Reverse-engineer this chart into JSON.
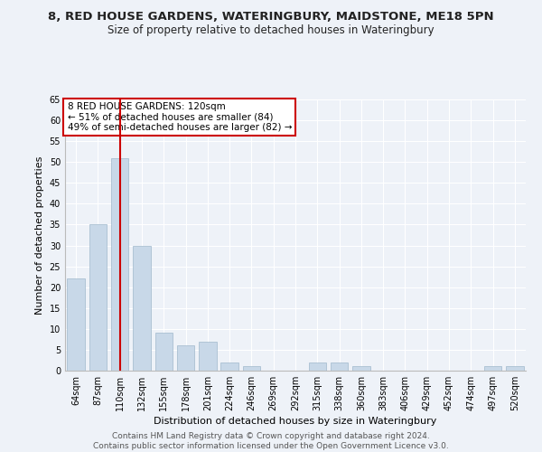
{
  "title": "8, RED HOUSE GARDENS, WATERINGBURY, MAIDSTONE, ME18 5PN",
  "subtitle": "Size of property relative to detached houses in Wateringbury",
  "xlabel": "Distribution of detached houses by size in Wateringbury",
  "ylabel": "Number of detached properties",
  "categories": [
    "64sqm",
    "87sqm",
    "110sqm",
    "132sqm",
    "155sqm",
    "178sqm",
    "201sqm",
    "224sqm",
    "246sqm",
    "269sqm",
    "292sqm",
    "315sqm",
    "338sqm",
    "360sqm",
    "383sqm",
    "406sqm",
    "429sqm",
    "452sqm",
    "474sqm",
    "497sqm",
    "520sqm"
  ],
  "values": [
    22,
    35,
    51,
    30,
    9,
    6,
    7,
    2,
    1,
    0,
    0,
    2,
    2,
    1,
    0,
    0,
    0,
    0,
    0,
    1,
    1
  ],
  "bar_color": "#c8d8e8",
  "bar_edge_color": "#a0b8cc",
  "vline_x_index": 2,
  "vline_color": "#cc0000",
  "annotation_text": "8 RED HOUSE GARDENS: 120sqm\n← 51% of detached houses are smaller (84)\n49% of semi-detached houses are larger (82) →",
  "annotation_box_color": "white",
  "annotation_box_edge_color": "#cc0000",
  "ylim": [
    0,
    65
  ],
  "yticks": [
    0,
    5,
    10,
    15,
    20,
    25,
    30,
    35,
    40,
    45,
    50,
    55,
    60,
    65
  ],
  "background_color": "#eef2f8",
  "grid_color": "white",
  "footer": "Contains HM Land Registry data © Crown copyright and database right 2024.\nContains public sector information licensed under the Open Government Licence v3.0.",
  "title_fontsize": 9.5,
  "subtitle_fontsize": 8.5,
  "xlabel_fontsize": 8,
  "ylabel_fontsize": 8,
  "tick_fontsize": 7,
  "annotation_fontsize": 7.5,
  "footer_fontsize": 6.5
}
